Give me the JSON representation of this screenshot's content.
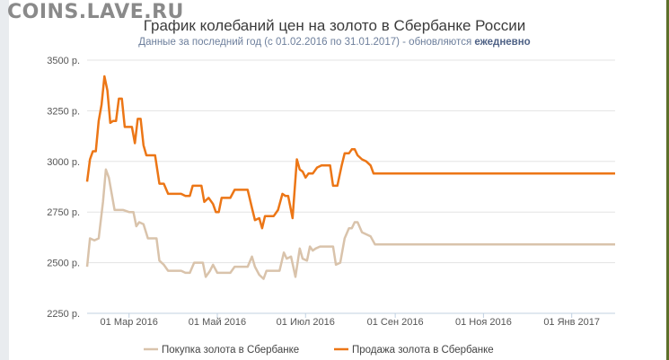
{
  "watermark": "COINS.LAVE.RU",
  "header": {
    "title": "График колебаний цен на золото в Сбербанке России",
    "subtitle_prefix": "Данные за последний год (с 01.02.2016 по 31.01.2017) - обновляются",
    "subtitle_emphasis": "ежедневно"
  },
  "colors": {
    "buy": "#d9c3ab",
    "sell": "#ec7616",
    "grid": "#e3e3e3"
  },
  "chart_data": {
    "type": "line",
    "y_ticks": [
      {
        "value": 2250,
        "label": "2250 р."
      },
      {
        "value": 2500,
        "label": "2500 р."
      },
      {
        "value": 2750,
        "label": "2750 р."
      },
      {
        "value": 3000,
        "label": "3000 р."
      },
      {
        "value": 3250,
        "label": "3250 р."
      },
      {
        "value": 3500,
        "label": "3500 р."
      }
    ],
    "ylim": [
      2250,
      3500
    ],
    "x_range": [
      "2016-02-01",
      "2017-01-31"
    ],
    "x_ticks": [
      {
        "date": "2016-03-01",
        "label": "01 Мар 2016"
      },
      {
        "date": "2016-05-01",
        "label": "01 Май 2016"
      },
      {
        "date": "2016-07-01",
        "label": "01 Июл 2016"
      },
      {
        "date": "2016-09-01",
        "label": "01 Сен 2016"
      },
      {
        "date": "2016-11-01",
        "label": "01 Ноя 2016"
      },
      {
        "date": "2017-01-01",
        "label": "01 Янв 2017"
      }
    ],
    "grid": true,
    "legend_position": "bottom",
    "series": [
      {
        "name": "Покупка золота в Сбербанке",
        "color_key": "buy",
        "points": [
          [
            "2016-02-01",
            2480
          ],
          [
            "2016-02-03",
            2620
          ],
          [
            "2016-02-06",
            2610
          ],
          [
            "2016-02-09",
            2620
          ],
          [
            "2016-02-12",
            2800
          ],
          [
            "2016-02-14",
            2960
          ],
          [
            "2016-02-16",
            2920
          ],
          [
            "2016-02-18",
            2840
          ],
          [
            "2016-02-20",
            2760
          ],
          [
            "2016-02-23",
            2760
          ],
          [
            "2016-02-26",
            2760
          ],
          [
            "2016-03-01",
            2750
          ],
          [
            "2016-03-04",
            2750
          ],
          [
            "2016-03-06",
            2680
          ],
          [
            "2016-03-08",
            2700
          ],
          [
            "2016-03-11",
            2690
          ],
          [
            "2016-03-14",
            2620
          ],
          [
            "2016-03-17",
            2620
          ],
          [
            "2016-03-20",
            2620
          ],
          [
            "2016-03-22",
            2510
          ],
          [
            "2016-03-25",
            2490
          ],
          [
            "2016-03-28",
            2460
          ],
          [
            "2016-03-31",
            2460
          ],
          [
            "2016-04-03",
            2460
          ],
          [
            "2016-04-06",
            2460
          ],
          [
            "2016-04-09",
            2450
          ],
          [
            "2016-04-12",
            2450
          ],
          [
            "2016-04-15",
            2500
          ],
          [
            "2016-04-18",
            2500
          ],
          [
            "2016-04-21",
            2500
          ],
          [
            "2016-04-23",
            2430
          ],
          [
            "2016-04-26",
            2460
          ],
          [
            "2016-04-28",
            2490
          ],
          [
            "2016-05-01",
            2450
          ],
          [
            "2016-05-04",
            2450
          ],
          [
            "2016-05-07",
            2450
          ],
          [
            "2016-05-10",
            2450
          ],
          [
            "2016-05-13",
            2480
          ],
          [
            "2016-05-16",
            2480
          ],
          [
            "2016-05-19",
            2480
          ],
          [
            "2016-05-22",
            2480
          ],
          [
            "2016-05-25",
            2530
          ],
          [
            "2016-05-27",
            2480
          ],
          [
            "2016-05-30",
            2440
          ],
          [
            "2016-06-02",
            2420
          ],
          [
            "2016-06-04",
            2460
          ],
          [
            "2016-06-07",
            2460
          ],
          [
            "2016-06-10",
            2460
          ],
          [
            "2016-06-13",
            2460
          ],
          [
            "2016-06-16",
            2550
          ],
          [
            "2016-06-18",
            2520
          ],
          [
            "2016-06-21",
            2530
          ],
          [
            "2016-06-24",
            2430
          ],
          [
            "2016-06-27",
            2570
          ],
          [
            "2016-06-29",
            2520
          ],
          [
            "2016-07-02",
            2510
          ],
          [
            "2016-07-04",
            2580
          ],
          [
            "2016-07-06",
            2560
          ],
          [
            "2016-07-08",
            2570
          ],
          [
            "2016-07-11",
            2580
          ],
          [
            "2016-07-14",
            2580
          ],
          [
            "2016-07-17",
            2580
          ],
          [
            "2016-07-20",
            2580
          ],
          [
            "2016-07-22",
            2490
          ],
          [
            "2016-07-25",
            2500
          ],
          [
            "2016-07-28",
            2620
          ],
          [
            "2016-07-31",
            2670
          ],
          [
            "2016-08-02",
            2670
          ],
          [
            "2016-08-04",
            2700
          ],
          [
            "2016-08-06",
            2700
          ],
          [
            "2016-08-09",
            2650
          ],
          [
            "2016-08-12",
            2640
          ],
          [
            "2016-08-15",
            2630
          ],
          [
            "2016-08-18",
            2590
          ],
          [
            "2016-08-21",
            2590
          ],
          [
            "2016-09-01",
            2590
          ],
          [
            "2016-10-01",
            2590
          ],
          [
            "2016-11-01",
            2590
          ],
          [
            "2016-12-01",
            2590
          ],
          [
            "2017-01-01",
            2590
          ],
          [
            "2017-01-31",
            2590
          ]
        ]
      },
      {
        "name": "Продажа золота в Сбербанке",
        "color_key": "sell",
        "points": [
          [
            "2016-02-01",
            2900
          ],
          [
            "2016-02-03",
            3010
          ],
          [
            "2016-02-05",
            3050
          ],
          [
            "2016-02-07",
            3050
          ],
          [
            "2016-02-09",
            3200
          ],
          [
            "2016-02-11",
            3280
          ],
          [
            "2016-02-13",
            3420
          ],
          [
            "2016-02-15",
            3350
          ],
          [
            "2016-02-17",
            3190
          ],
          [
            "2016-02-19",
            3200
          ],
          [
            "2016-02-21",
            3200
          ],
          [
            "2016-02-23",
            3310
          ],
          [
            "2016-02-25",
            3310
          ],
          [
            "2016-02-27",
            3170
          ],
          [
            "2016-03-01",
            3170
          ],
          [
            "2016-03-03",
            3170
          ],
          [
            "2016-03-05",
            3090
          ],
          [
            "2016-03-07",
            3210
          ],
          [
            "2016-03-09",
            3210
          ],
          [
            "2016-03-11",
            3080
          ],
          [
            "2016-03-13",
            3030
          ],
          [
            "2016-03-16",
            3030
          ],
          [
            "2016-03-19",
            3030
          ],
          [
            "2016-03-22",
            2890
          ],
          [
            "2016-03-25",
            2890
          ],
          [
            "2016-03-28",
            2840
          ],
          [
            "2016-03-31",
            2840
          ],
          [
            "2016-04-03",
            2840
          ],
          [
            "2016-04-06",
            2840
          ],
          [
            "2016-04-09",
            2830
          ],
          [
            "2016-04-12",
            2830
          ],
          [
            "2016-04-14",
            2880
          ],
          [
            "2016-04-17",
            2880
          ],
          [
            "2016-04-20",
            2880
          ],
          [
            "2016-04-22",
            2800
          ],
          [
            "2016-04-25",
            2820
          ],
          [
            "2016-04-28",
            2790
          ],
          [
            "2016-04-30",
            2750
          ],
          [
            "2016-05-02",
            2750
          ],
          [
            "2016-05-04",
            2820
          ],
          [
            "2016-05-07",
            2820
          ],
          [
            "2016-05-10",
            2820
          ],
          [
            "2016-05-13",
            2860
          ],
          [
            "2016-05-16",
            2860
          ],
          [
            "2016-05-19",
            2860
          ],
          [
            "2016-05-22",
            2860
          ],
          [
            "2016-05-25",
            2770
          ],
          [
            "2016-05-27",
            2710
          ],
          [
            "2016-05-30",
            2720
          ],
          [
            "2016-06-01",
            2670
          ],
          [
            "2016-06-03",
            2730
          ],
          [
            "2016-06-06",
            2730
          ],
          [
            "2016-06-09",
            2730
          ],
          [
            "2016-06-12",
            2760
          ],
          [
            "2016-06-15",
            2840
          ],
          [
            "2016-06-17",
            2830
          ],
          [
            "2016-06-19",
            2830
          ],
          [
            "2016-06-22",
            2720
          ],
          [
            "2016-06-25",
            3010
          ],
          [
            "2016-06-27",
            2960
          ],
          [
            "2016-06-29",
            2950
          ],
          [
            "2016-07-01",
            2920
          ],
          [
            "2016-07-03",
            2940
          ],
          [
            "2016-07-06",
            2940
          ],
          [
            "2016-07-09",
            2970
          ],
          [
            "2016-07-12",
            2980
          ],
          [
            "2016-07-15",
            2980
          ],
          [
            "2016-07-18",
            2980
          ],
          [
            "2016-07-20",
            2880
          ],
          [
            "2016-07-23",
            2880
          ],
          [
            "2016-07-26",
            2980
          ],
          [
            "2016-07-28",
            3040
          ],
          [
            "2016-07-31",
            3040
          ],
          [
            "2016-08-02",
            3060
          ],
          [
            "2016-08-04",
            3060
          ],
          [
            "2016-08-06",
            3030
          ],
          [
            "2016-08-09",
            3010
          ],
          [
            "2016-08-12",
            3000
          ],
          [
            "2016-08-15",
            2980
          ],
          [
            "2016-08-17",
            2940
          ],
          [
            "2016-09-01",
            2940
          ],
          [
            "2016-10-01",
            2940
          ],
          [
            "2016-11-01",
            2940
          ],
          [
            "2016-12-01",
            2940
          ],
          [
            "2017-01-01",
            2940
          ],
          [
            "2017-01-31",
            2940
          ]
        ]
      }
    ]
  }
}
